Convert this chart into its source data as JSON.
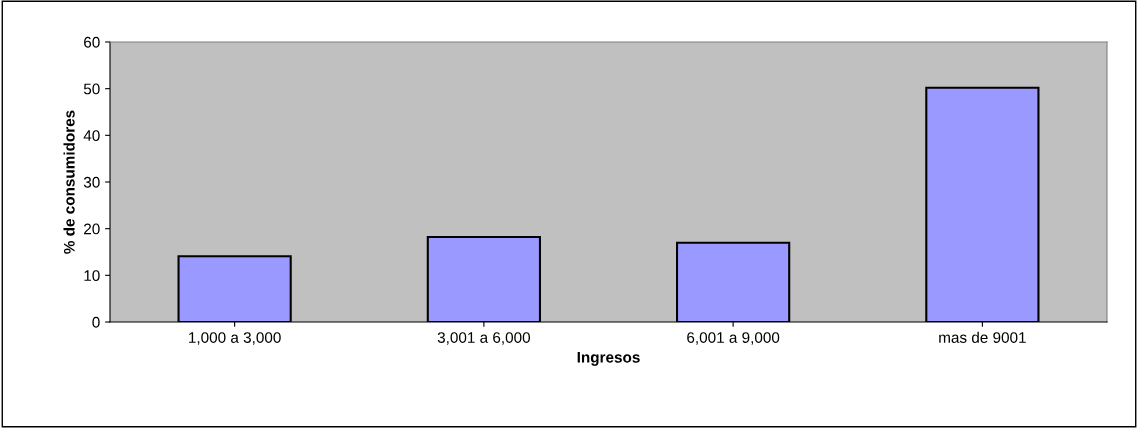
{
  "chart_data": {
    "type": "bar",
    "xlabel": "Ingresos",
    "ylabel": "% de consumidores",
    "categories": [
      "1,000 a 3,000",
      "3,001 a 6,000",
      "6,001 a 9,000",
      "mas de 9001"
    ],
    "values": [
      14.1,
      18.2,
      17,
      50.2
    ],
    "color": "#9999ff",
    "ylim": [
      0,
      60
    ],
    "yticks": [
      0,
      10,
      20,
      30,
      40,
      50,
      60
    ],
    "grid": false,
    "legend": false
  }
}
